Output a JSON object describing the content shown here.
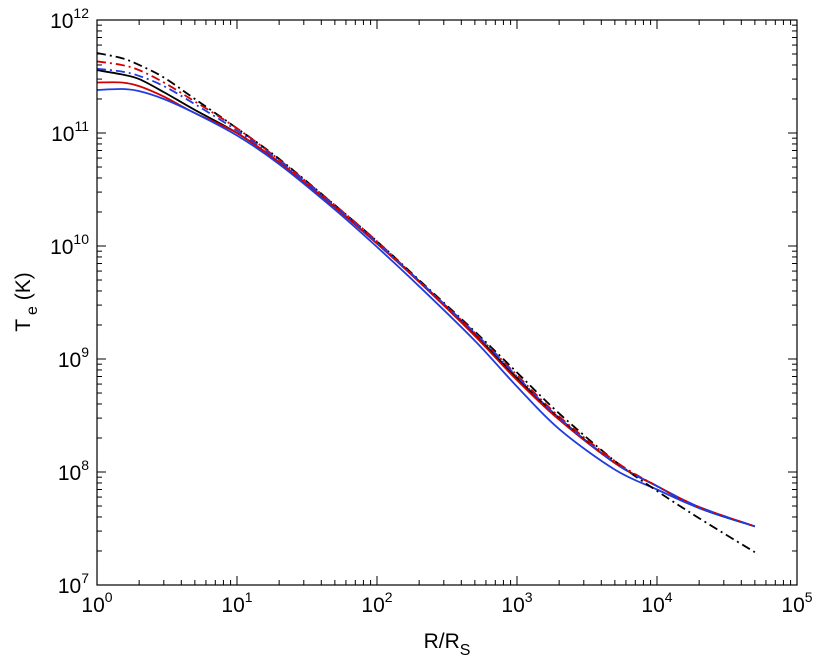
{
  "chart_data": {
    "type": "line",
    "title": "",
    "xlabel": {
      "main": "R/R",
      "sub": "S"
    },
    "ylabel": {
      "main": "T",
      "sub": "e",
      "suffix": " (K)"
    },
    "xscale": "log",
    "yscale": "log",
    "xlim": [
      1,
      100000
    ],
    "ylim": [
      10000000,
      1000000000000
    ],
    "xticks": [
      {
        "value": 1,
        "base": "10",
        "exp": "0"
      },
      {
        "value": 10,
        "base": "10",
        "exp": "1"
      },
      {
        "value": 100,
        "base": "10",
        "exp": "2"
      },
      {
        "value": 1000,
        "base": "10",
        "exp": "3"
      },
      {
        "value": 10000,
        "base": "10",
        "exp": "4"
      },
      {
        "value": 100000,
        "base": "10",
        "exp": "5"
      }
    ],
    "yticks": [
      {
        "value": 10000000,
        "base": "10",
        "exp": "7"
      },
      {
        "value": 100000000,
        "base": "10",
        "exp": "8"
      },
      {
        "value": 1000000000,
        "base": "10",
        "exp": "9"
      },
      {
        "value": 10000000000,
        "base": "10",
        "exp": "10"
      },
      {
        "value": 100000000000,
        "base": "10",
        "exp": "11"
      },
      {
        "value": 1000000000000,
        "base": "10",
        "exp": "12"
      }
    ],
    "grid": false,
    "legend": "none",
    "series": [
      {
        "color": "#000000",
        "dash": "solid",
        "x": [
          1,
          1.5,
          2,
          3,
          5,
          10,
          20,
          50,
          100,
          200,
          500,
          1000,
          2000,
          5000,
          10000,
          20000,
          50000
        ],
        "y": [
          360000000000.0,
          330000000000.0,
          300000000000.0,
          230000000000.0,
          160000000000.0,
          100000000000.0,
          55000000000.0,
          22000000000.0,
          10500000000.0,
          4900000000.0,
          1650000000.0,
          680000000.0,
          300000000.0,
          120000000.0,
          75000000.0,
          48000000.0,
          33000000.0
        ]
      },
      {
        "color": "#d40000",
        "dash": "solid",
        "x": [
          1,
          1.5,
          2,
          3,
          5,
          10,
          20,
          50,
          100,
          200,
          500,
          1000,
          2000,
          5000,
          10000,
          20000,
          50000
        ],
        "y": [
          280000000000.0,
          280000000000.0,
          260000000000.0,
          210000000000.0,
          150000000000.0,
          100000000000.0,
          55000000000.0,
          22000000000.0,
          10500000000.0,
          4800000000.0,
          1600000000.0,
          650000000.0,
          290000000.0,
          120000000.0,
          75000000.0,
          49000000.0,
          33000000.0
        ]
      },
      {
        "color": "#1f3de0",
        "dash": "solid",
        "x": [
          1,
          1.5,
          2,
          3,
          5,
          10,
          20,
          50,
          100,
          200,
          500,
          1000,
          2000,
          5000,
          10000,
          20000,
          50000
        ],
        "y": [
          240000000000.0,
          245000000000.0,
          235000000000.0,
          200000000000.0,
          150000000000.0,
          95000000000.0,
          53000000000.0,
          21000000000.0,
          9800000000.0,
          4400000000.0,
          1450000000.0,
          570000000.0,
          240000000.0,
          105000000.0,
          70000000.0,
          48000000.0,
          33000000.0
        ]
      },
      {
        "color": "#000000",
        "dash": "dashdot",
        "x": [
          1,
          1.5,
          2,
          3,
          5,
          10,
          20,
          50,
          100,
          200,
          500,
          1000,
          2000,
          5000,
          10000,
          20000,
          50000
        ],
        "y": [
          510000000000.0,
          460000000000.0,
          400000000000.0,
          310000000000.0,
          200000000000.0,
          110000000000.0,
          59000000000.0,
          23000000000.0,
          11000000000.0,
          5000000000.0,
          1750000000.0,
          760000000.0,
          330000000.0,
          125000000.0,
          68000000.0,
          39000000.0,
          19500000.0
        ]
      },
      {
        "color": "#d40000",
        "dash": "dashdot",
        "x": [
          1,
          1.5,
          2,
          3,
          5,
          10,
          20,
          50,
          100,
          200,
          500,
          1000,
          2000,
          5000,
          10000,
          20000,
          50000
        ],
        "y": [
          430000000000.0,
          400000000000.0,
          360000000000.0,
          280000000000.0,
          190000000000.0,
          110000000000.0,
          58000000000.0,
          23000000000.0,
          11000000000.0,
          4900000000.0,
          1700000000.0,
          720000000.0,
          310000000.0,
          125000000.0,
          75000000.0,
          49000000.0,
          33000000.0
        ]
      },
      {
        "color": "#1f3de0",
        "dash": "dashdot",
        "x": [
          1,
          1.5,
          2,
          3,
          5,
          10,
          20,
          50,
          100,
          200,
          500,
          1000,
          2000,
          5000,
          10000,
          20000,
          50000
        ],
        "y": [
          370000000000.0,
          350000000000.0,
          320000000000.0,
          260000000000.0,
          180000000000.0,
          105000000000.0,
          57000000000.0,
          22500000000.0,
          10700000000.0,
          4900000000.0,
          1700000000.0,
          700000000.0,
          300000000.0,
          120000000.0,
          75000000.0,
          49000000.0,
          33000000.0
        ]
      }
    ]
  }
}
